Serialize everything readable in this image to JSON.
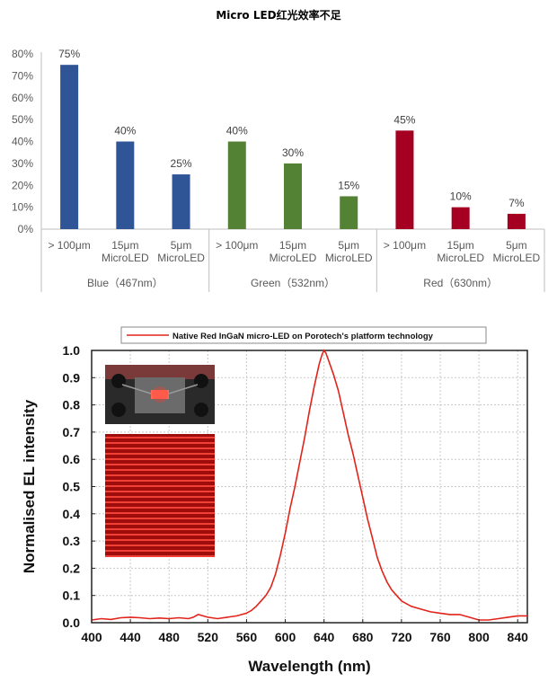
{
  "page": {
    "title": "Micro LED红光效率不足"
  },
  "chart_data": [
    {
      "type": "bar",
      "title": "Micro LED红光效率不足",
      "y_ticks": [
        "0%",
        "10%",
        "20%",
        "30%",
        "40%",
        "50%",
        "60%",
        "70%",
        "80%"
      ],
      "ylim": [
        0,
        80
      ],
      "grid": false,
      "groups": [
        {
          "name": "Blue（467nm）",
          "color": "#2f5597",
          "bars": [
            {
              "category": [
                "> 100μm"
              ],
              "value": 75,
              "label": "75%"
            },
            {
              "category": [
                "15μm",
                "MicroLED"
              ],
              "value": 40,
              "label": "40%"
            },
            {
              "category": [
                "5μm",
                "MicroLED"
              ],
              "value": 25,
              "label": "25%"
            }
          ]
        },
        {
          "name": "Green（532nm）",
          "color": "#548235",
          "bars": [
            {
              "category": [
                "> 100μm"
              ],
              "value": 40,
              "label": "40%"
            },
            {
              "category": [
                "15μm",
                "MicroLED"
              ],
              "value": 30,
              "label": "30%"
            },
            {
              "category": [
                "5μm",
                "MicroLED"
              ],
              "value": 15,
              "label": "15%"
            }
          ]
        },
        {
          "name": "Red（630nm）",
          "color": "#a50021",
          "bars": [
            {
              "category": [
                "> 100μm"
              ],
              "value": 45,
              "label": "45%"
            },
            {
              "category": [
                "15μm",
                "MicroLED"
              ],
              "value": 10,
              "label": "10%"
            },
            {
              "category": [
                "5μm",
                "MicroLED"
              ],
              "value": 7,
              "label": "7%"
            }
          ]
        }
      ]
    },
    {
      "type": "line",
      "xlabel": "Wavelength (nm)",
      "ylabel": "Normalised EL intensity",
      "xlim": [
        400,
        850
      ],
      "ylim": [
        0,
        1.0
      ],
      "x_ticks": [
        400,
        440,
        480,
        520,
        560,
        600,
        640,
        680,
        720,
        760,
        800,
        840
      ],
      "y_ticks": [
        "0.0",
        "0.1",
        "0.2",
        "0.3",
        "0.4",
        "0.5",
        "0.6",
        "0.7",
        "0.8",
        "0.9",
        "1.0"
      ],
      "grid": true,
      "legend_position": "top-center",
      "series": [
        {
          "name": "Native Red InGaN micro-LED on Porotech's platform technology",
          "color": "#e2231a",
          "x": [
            400,
            410,
            420,
            430,
            440,
            450,
            460,
            470,
            480,
            490,
            500,
            505,
            510,
            515,
            520,
            530,
            540,
            550,
            555,
            560,
            565,
            570,
            575,
            580,
            585,
            590,
            595,
            600,
            605,
            610,
            615,
            620,
            625,
            630,
            635,
            638,
            640,
            642,
            645,
            650,
            655,
            660,
            665,
            670,
            675,
            680,
            685,
            690,
            695,
            700,
            705,
            710,
            715,
            720,
            725,
            730,
            740,
            750,
            760,
            770,
            780,
            790,
            800,
            810,
            820,
            830,
            840,
            850
          ],
          "y": [
            0.01,
            0.015,
            0.012,
            0.018,
            0.02,
            0.018,
            0.015,
            0.017,
            0.015,
            0.018,
            0.015,
            0.02,
            0.03,
            0.025,
            0.02,
            0.015,
            0.02,
            0.025,
            0.03,
            0.035,
            0.045,
            0.06,
            0.08,
            0.1,
            0.13,
            0.18,
            0.25,
            0.33,
            0.42,
            0.5,
            0.59,
            0.68,
            0.78,
            0.87,
            0.95,
            0.985,
            1.0,
            0.99,
            0.96,
            0.91,
            0.85,
            0.77,
            0.69,
            0.62,
            0.54,
            0.46,
            0.38,
            0.31,
            0.24,
            0.19,
            0.15,
            0.12,
            0.1,
            0.08,
            0.07,
            0.06,
            0.05,
            0.04,
            0.035,
            0.03,
            0.03,
            0.02,
            0.01,
            0.01,
            0.015,
            0.02,
            0.025,
            0.025
          ]
        }
      ]
    }
  ]
}
